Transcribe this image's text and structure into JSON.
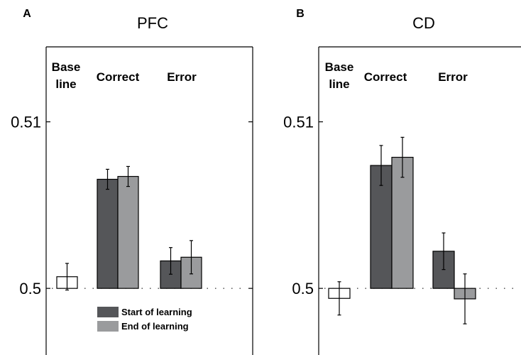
{
  "colors": {
    "start": "#555659",
    "end": "#9a9b9d",
    "baseline": "#ffffff",
    "stroke": "#000000"
  },
  "legend": {
    "start_label": "Start of learning",
    "end_label": "End of learning",
    "placement": "bottom-center of panel A"
  },
  "chart_data": [
    {
      "type": "bar",
      "panel_letter": "A",
      "title": "PFC",
      "categories": [
        "Base line",
        "Correct",
        "Error"
      ],
      "category_labels": [
        [
          "Base",
          "line"
        ],
        [
          "Correct"
        ],
        [
          "Error"
        ]
      ],
      "ylim": [
        0.496,
        0.5145
      ],
      "yticks": [
        0.5,
        0.51
      ],
      "ytick_labels": [
        "0.5",
        "0.51"
      ],
      "reference_line": 0.5,
      "series": [
        {
          "name": "Baseline",
          "values": [
            0.5007,
            null,
            null
          ],
          "errors": [
            0.0008,
            null,
            null
          ]
        },
        {
          "name": "Start of learning",
          "values": [
            null,
            0.50655,
            0.50165
          ],
          "errors": [
            null,
            0.0006,
            0.0008
          ]
        },
        {
          "name": "End of learning",
          "values": [
            null,
            0.50672,
            0.50187
          ],
          "errors": [
            null,
            0.0006,
            0.001
          ]
        }
      ]
    },
    {
      "type": "bar",
      "panel_letter": "B",
      "title": "CD",
      "categories": [
        "Base line",
        "Correct",
        "Error"
      ],
      "category_labels": [
        [
          "Base",
          "line"
        ],
        [
          "Correct"
        ],
        [
          "Error"
        ]
      ],
      "ylim": [
        0.496,
        0.5145
      ],
      "yticks": [
        0.5,
        0.51
      ],
      "ytick_labels": [
        "0.5",
        "0.51"
      ],
      "reference_line": 0.5,
      "series": [
        {
          "name": "Baseline",
          "values": [
            0.4994,
            null,
            null
          ],
          "errors": [
            0.001,
            null,
            null
          ]
        },
        {
          "name": "Start of learning",
          "values": [
            null,
            0.50738,
            0.50223
          ],
          "errors": [
            null,
            0.0012,
            0.0011
          ]
        },
        {
          "name": "End of learning",
          "values": [
            null,
            0.50787,
            0.49937
          ],
          "errors": [
            null,
            0.0012,
            0.0015
          ]
        }
      ]
    }
  ]
}
